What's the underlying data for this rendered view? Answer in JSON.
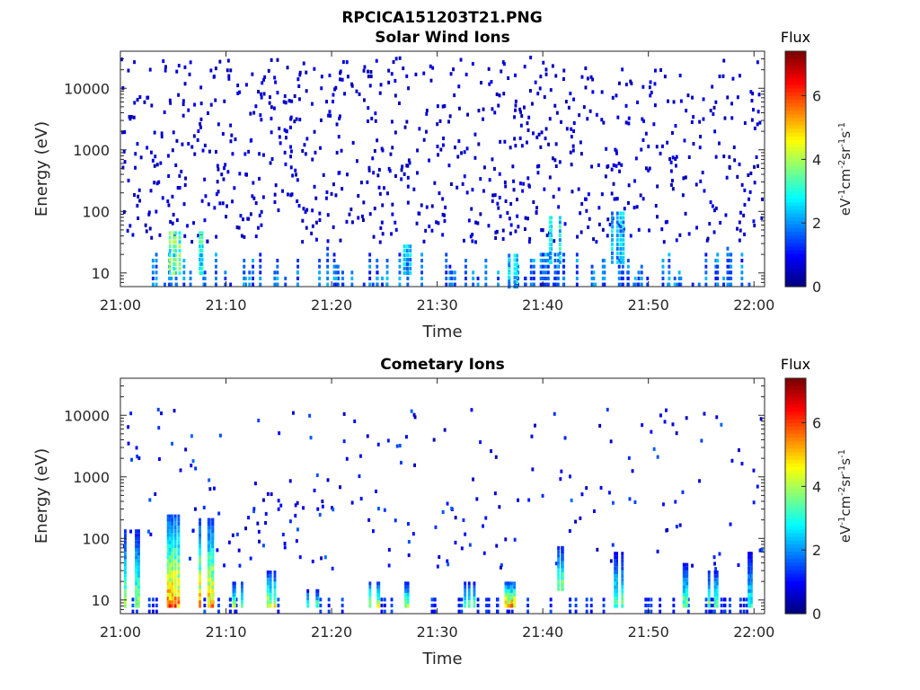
{
  "figure_title": "RPCICA151203T21.PNG",
  "chart_data": [
    {
      "type": "heatmap",
      "title": "Solar Wind Ions",
      "xlabel": "Time",
      "ylabel": "Energy (eV)",
      "x_ticks": [
        "21:00",
        "21:10",
        "21:20",
        "21:30",
        "21:40",
        "21:50",
        "22:00"
      ],
      "x_range": [
        "21:00",
        "22:01"
      ],
      "y_scale": "log",
      "y_ticks": [
        10,
        100,
        1000,
        10000
      ],
      "y_tick_labels": [
        "10",
        "100",
        "1000",
        "10000"
      ],
      "y_range": [
        6,
        40000
      ],
      "colorbar": {
        "title": "Flux",
        "label": "eV-1cm-2sr-1s-1",
        "ticks": [
          0,
          2,
          4,
          6
        ],
        "tick_labels": [
          "0",
          "2",
          "4",
          "6"
        ],
        "range": [
          0,
          7.4
        ],
        "colormap": "jet",
        "position": "right"
      },
      "description_values": "sparse scattered counts; low flux (0-1) across 30-30000 eV, moderate flux (1-4) below 100 eV",
      "profile": {
        "high_energy_counts": "dense low-flux scatter 100-30000 eV",
        "low_energy_peaks": [
          {
            "time": "21:05",
            "energy_range": [
              10,
              50
            ],
            "max_flux": 4.2
          },
          {
            "time": "21:08",
            "energy_range": [
              10,
              50
            ],
            "max_flux": 3.8
          },
          {
            "time": "21:27",
            "energy_range": [
              10,
              30
            ],
            "max_flux": 3.0
          },
          {
            "time": "21:37",
            "energy_range": [
              6,
              20
            ],
            "max_flux": 3.2
          },
          {
            "time": "21:41",
            "energy_range": [
              15,
              80
            ],
            "max_flux": 3.4
          },
          {
            "time": "21:47",
            "energy_range": [
              15,
              100
            ],
            "max_flux": 3.0
          }
        ]
      }
    },
    {
      "type": "heatmap",
      "title": "Cometary Ions",
      "xlabel": "Time",
      "ylabel": "Energy (eV)",
      "x_ticks": [
        "21:00",
        "21:10",
        "21:20",
        "21:30",
        "21:40",
        "21:50",
        "22:00"
      ],
      "x_range": [
        "21:00",
        "22:01"
      ],
      "y_scale": "log",
      "y_ticks": [
        10,
        100,
        1000,
        10000
      ],
      "y_tick_labels": [
        "10",
        "100",
        "1000",
        "10000"
      ],
      "y_range": [
        6,
        40000
      ],
      "colorbar": {
        "title": "Flux",
        "label": "eV-1cm-2sr-1s-1",
        "ticks": [
          0,
          2,
          4,
          6
        ],
        "tick_labels": [
          "0",
          "2",
          "4",
          "6"
        ],
        "range": [
          0,
          7.4
        ],
        "colormap": "jet",
        "position": "right"
      },
      "profile": {
        "high_energy_counts": "sparse low-flux scatter 100-10000 eV",
        "low_energy_peaks": [
          {
            "time": "21:01",
            "energy_range": [
              8,
              150
            ],
            "max_flux": 4.5
          },
          {
            "time": "21:05",
            "energy_range": [
              8,
              250
            ],
            "max_flux": 6.5
          },
          {
            "time": "21:08",
            "energy_range": [
              8,
              200
            ],
            "max_flux": 6.2
          },
          {
            "time": "21:11",
            "energy_range": [
              8,
              20
            ],
            "max_flux": 4.5
          },
          {
            "time": "21:14",
            "energy_range": [
              8,
              30
            ],
            "max_flux": 5.0
          },
          {
            "time": "21:18",
            "energy_range": [
              8,
              15
            ],
            "max_flux": 4.0
          },
          {
            "time": "21:24",
            "energy_range": [
              8,
              20
            ],
            "max_flux": 5.0
          },
          {
            "time": "21:27",
            "energy_range": [
              8,
              20
            ],
            "max_flux": 4.5
          },
          {
            "time": "21:33",
            "energy_range": [
              8,
              20
            ],
            "max_flux": 4.0
          },
          {
            "time": "21:37",
            "energy_range": [
              8,
              20
            ],
            "max_flux": 6.0
          },
          {
            "time": "21:42",
            "energy_range": [
              15,
              80
            ],
            "max_flux": 4.5
          },
          {
            "time": "21:47",
            "energy_range": [
              8,
              60
            ],
            "max_flux": 4.0
          },
          {
            "time": "21:53",
            "energy_range": [
              8,
              40
            ],
            "max_flux": 4.2
          },
          {
            "time": "21:56",
            "energy_range": [
              8,
              30
            ],
            "max_flux": 4.5
          },
          {
            "time": "21:59",
            "energy_range": [
              8,
              60
            ],
            "max_flux": 3.5
          }
        ]
      }
    }
  ]
}
